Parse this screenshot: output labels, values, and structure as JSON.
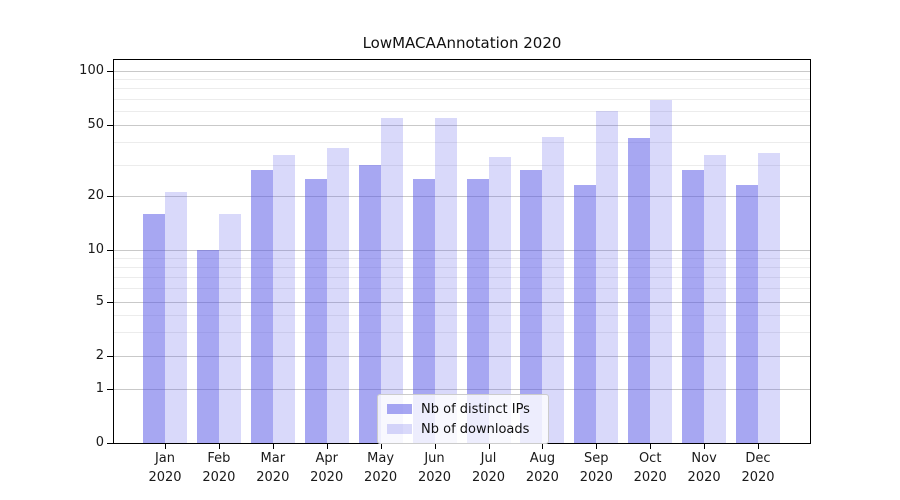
{
  "title": "LowMACAAnnotation 2020",
  "colors": {
    "bar_base": "#5050e6",
    "bar_distinct_ips": "rgba(80,80,230,0.5)",
    "bar_downloads": "rgba(80,80,230,0.22)",
    "grid_major": "#c9c9c9",
    "grid_minor": "#ececec",
    "axis": "#000000",
    "text": "#1a1a1a"
  },
  "chart_data": {
    "type": "bar",
    "title": "LowMACAAnnotation 2020",
    "categories": [
      "Jan",
      "Feb",
      "Mar",
      "Apr",
      "May",
      "Jun",
      "Jul",
      "Aug",
      "Sep",
      "Oct",
      "Nov",
      "Dec"
    ],
    "year": "2020",
    "series": [
      {
        "name": "Nb of distinct IPs",
        "color": "rgba(80,80,230,0.5)",
        "values": [
          16,
          10,
          28,
          25,
          30,
          25,
          25,
          28,
          23,
          42,
          28,
          23
        ]
      },
      {
        "name": "Nb of downloads",
        "color": "rgba(80,80,230,0.22)",
        "values": [
          21,
          16,
          34,
          37,
          55,
          55,
          33,
          43,
          60,
          69,
          34,
          35
        ]
      }
    ],
    "xlabel": "",
    "ylabel": "",
    "y_axis": {
      "scale": "symlog",
      "ticks": [
        0,
        1,
        2,
        5,
        10,
        20,
        50,
        100
      ],
      "minor_ticks": [
        3,
        4,
        6,
        7,
        8,
        9,
        30,
        40,
        60,
        70,
        80,
        90
      ],
      "range": [
        0,
        120
      ]
    },
    "grid": "on",
    "legend_position": "bottom-center"
  }
}
